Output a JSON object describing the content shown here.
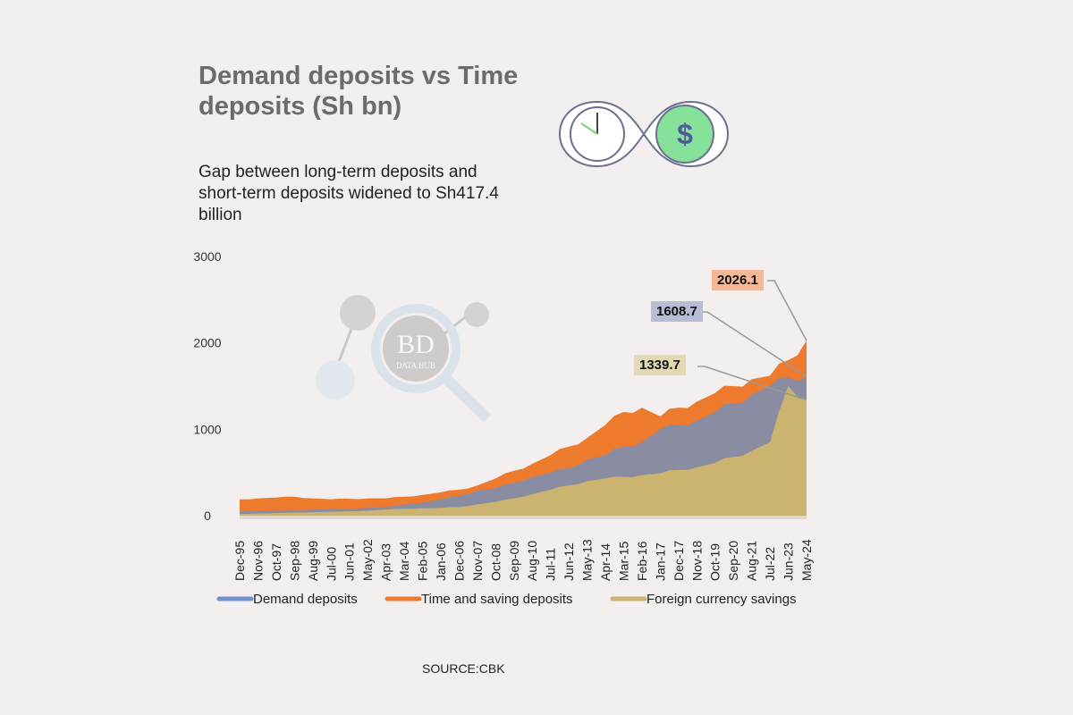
{
  "title": "Demand deposits vs Time deposits (Sh bn)",
  "subtitle": "Gap between long-term deposits and short-term deposits widened to Sh417.4 billion",
  "source": "SOURCE:CBK",
  "watermark": "BD DATA HUB",
  "colors": {
    "time": "#ee7a2e",
    "demand": "#8a8ca2",
    "foreign": "#cbb46f",
    "demand_legend": "#6f93cf"
  },
  "chart_data": {
    "type": "area",
    "title": "Demand deposits vs Time deposits (Sh bn)",
    "xlabel": "",
    "ylabel": "",
    "ylim": [
      0,
      3000
    ],
    "yticks": [
      "0",
      "1000",
      "2000",
      "3000"
    ],
    "categories": [
      "Dec-95",
      "Nov-96",
      "Oct-97",
      "Sep-98",
      "Aug-99",
      "Jul-00",
      "Jun-01",
      "May-02",
      "Apr-03",
      "Mar-04",
      "Feb-05",
      "Jan-06",
      "Dec-06",
      "Nov-07",
      "Oct-08",
      "Sep-09",
      "Aug-10",
      "Jul-11",
      "Jun-12",
      "May-13",
      "Apr-14",
      "Mar-15",
      "Feb-16",
      "Jan-17",
      "Dec-17",
      "Nov-18",
      "Oct-19",
      "Sep-20",
      "Aug-21",
      "Jul-22",
      "Jun-23",
      "May-24"
    ],
    "series": [
      {
        "name": "Time and saving deposits",
        "values": [
          190,
          200,
          210,
          220,
          200,
          190,
          195,
          200,
          200,
          220,
          240,
          270,
          300,
          350,
          430,
          520,
          600,
          700,
          800,
          900,
          1050,
          1200,
          1250,
          1150,
          1250,
          1320,
          1420,
          1500,
          1580,
          1620,
          1800,
          2026.1
        ]
      },
      {
        "name": "Demand deposits",
        "values": [
          50,
          55,
          60,
          65,
          70,
          75,
          80,
          90,
          100,
          130,
          150,
          190,
          230,
          290,
          320,
          380,
          450,
          500,
          550,
          650,
          700,
          800,
          850,
          1000,
          1050,
          1100,
          1200,
          1300,
          1400,
          1500,
          1600,
          1608.7
        ]
      },
      {
        "name": "Foreign currency savings",
        "values": [
          20,
          25,
          30,
          35,
          40,
          45,
          50,
          60,
          70,
          80,
          85,
          90,
          100,
          130,
          160,
          200,
          250,
          300,
          350,
          400,
          430,
          450,
          470,
          490,
          530,
          560,
          610,
          680,
          750,
          850,
          1500,
          1339.7
        ]
      }
    ],
    "annotations": [
      "2026.1",
      "1608.7",
      "1339.7"
    ],
    "legend": [
      "Demand deposits",
      "Time and saving deposits",
      "Foreign currency savings"
    ],
    "legend_position": "bottom",
    "grid": false
  }
}
